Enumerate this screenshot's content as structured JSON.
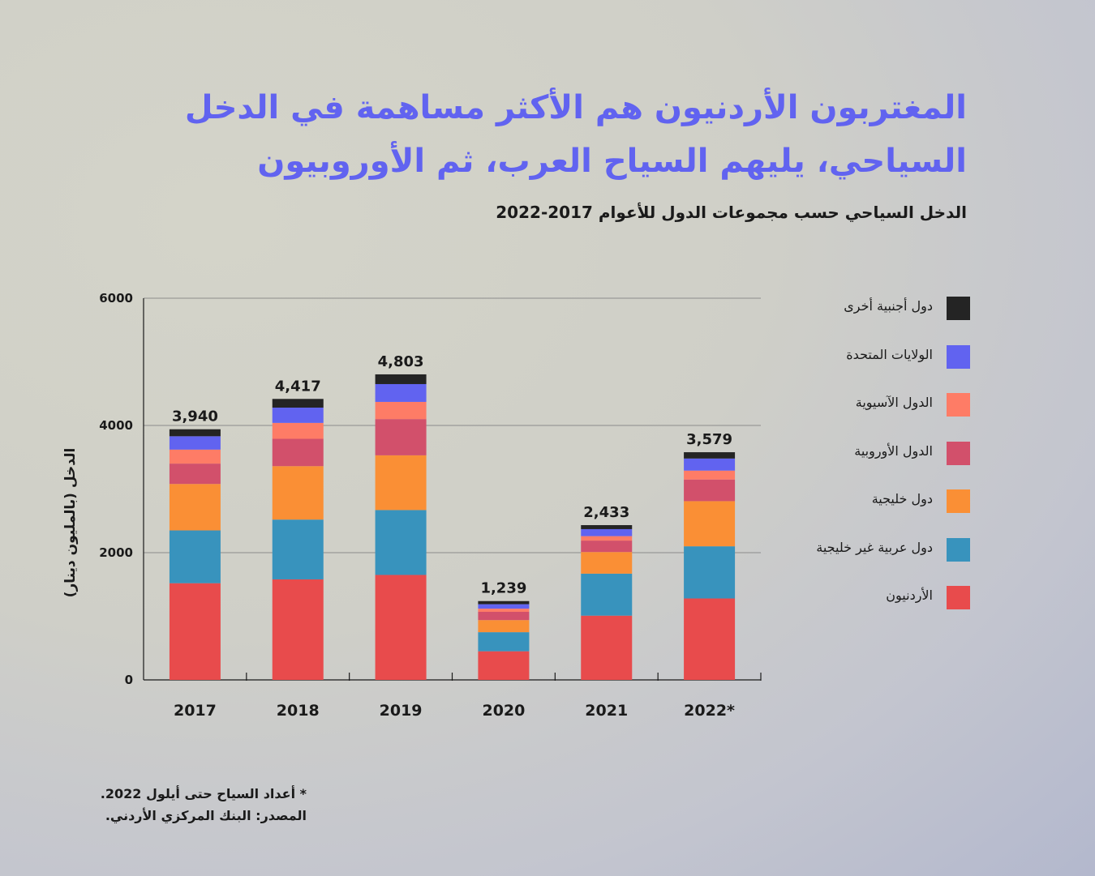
{
  "header": {
    "title": "المغتربون الأردنيون هم الأكثر مساهمة في الدخل السياحي، يليهم السياح العرب، ثم الأوروبيون",
    "subtitle": "الدخل السياحي حسب مجموعات الدول للأعوام 2017-2022"
  },
  "chart_data": {
    "type": "bar",
    "stacked": true,
    "categories": [
      "2017",
      "2018",
      "2019",
      "2020",
      "2021",
      "2022*"
    ],
    "ylabel": "الدخل (بالمليون دينار)",
    "ylim": [
      0,
      6000
    ],
    "yticks": [
      "0",
      "2000",
      "4000",
      "6000"
    ],
    "grid": true,
    "legend_position": "right",
    "totals": [
      "3,940",
      "4,417",
      "4,803",
      "1,239",
      "2,433",
      "3,579"
    ],
    "series": [
      {
        "name": "الأردنيون",
        "color": "#e84b4c",
        "values": [
          1520,
          1580,
          1650,
          450,
          1010,
          1280
        ]
      },
      {
        "name": "دول عربية غير خليجية",
        "color": "#3893bd",
        "values": [
          830,
          940,
          1020,
          300,
          660,
          820
        ]
      },
      {
        "name": "دول خليجية",
        "color": "#fa8f35",
        "values": [
          730,
          840,
          860,
          190,
          340,
          710
        ]
      },
      {
        "name": "الدول الأوروبية",
        "color": "#d2506b",
        "values": [
          320,
          430,
          570,
          130,
          180,
          340
        ]
      },
      {
        "name": "الدول الآسيوية",
        "color": "#fe7c66",
        "values": [
          220,
          250,
          270,
          50,
          70,
          140
        ]
      },
      {
        "name": "الولايات المتحدة",
        "color": "#6163f0",
        "values": [
          210,
          240,
          280,
          70,
          110,
          190
        ]
      },
      {
        "name": "دول أجنبية أخرى",
        "color": "#242424",
        "values": [
          110,
          137,
          153,
          49,
          63,
          99
        ]
      }
    ]
  },
  "footnote": {
    "note": "* أعداد السياح حتى أيلول 2022.",
    "source": "المصدر: البنك المركزي الأردني."
  }
}
